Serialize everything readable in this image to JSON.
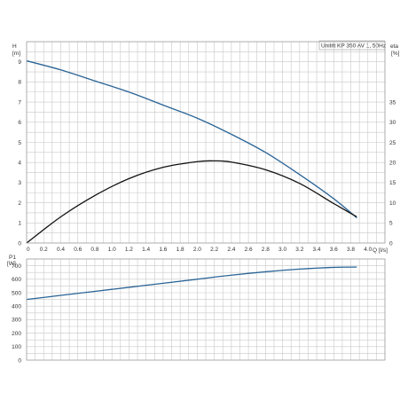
{
  "colors": {
    "head_curve": "#2a6496",
    "eta_curve": "#111111",
    "power_curve": "#2a6496",
    "grid": "#c8c8c8",
    "frame": "#9a9a9a",
    "text": "#333333"
  },
  "chart_data": [
    {
      "type": "line",
      "title": "Unilift KP 350 AV 1, 50Hz",
      "xlabel": "Q [l/s]",
      "ylabel": "H\n[m]",
      "ylabel_right": "eta\n[%]",
      "xlim": [
        0,
        4.2
      ],
      "ylim": [
        0,
        10
      ],
      "ylim_right": [
        0,
        50
      ],
      "x_ticks": [
        "0",
        "0.2",
        "0.4",
        "0.6",
        "0.8",
        "1.0",
        "1.2",
        "1.4",
        "1.6",
        "1.8",
        "2.0",
        "2.2",
        "2.4",
        "2.6",
        "2.8",
        "3.0",
        "3.2",
        "3.4",
        "3.6",
        "3.8",
        "4.0"
      ],
      "y_ticks": [
        "0",
        "1",
        "2",
        "3",
        "4",
        "5",
        "6",
        "7",
        "8",
        "9"
      ],
      "y_ticks_right": [
        "0",
        "5",
        "10",
        "15",
        "20",
        "25",
        "30",
        "35"
      ],
      "grid": true,
      "series": [
        {
          "axis": "left",
          "x": [
            0,
            0.4,
            0.8,
            1.2,
            1.6,
            2.0,
            2.4,
            2.8,
            3.2,
            3.6,
            3.87
          ],
          "values": [
            9.05,
            8.6,
            8.05,
            7.5,
            6.85,
            6.2,
            5.4,
            4.5,
            3.4,
            2.2,
            1.25
          ]
        },
        {
          "axis": "right",
          "x": [
            0,
            0.4,
            0.8,
            1.2,
            1.6,
            2.0,
            2.2,
            2.4,
            2.8,
            3.2,
            3.6,
            3.87
          ],
          "values": [
            0,
            6.5,
            11.8,
            16.0,
            18.8,
            20.2,
            20.4,
            20.1,
            18.2,
            14.8,
            9.8,
            6.5
          ]
        }
      ]
    },
    {
      "type": "line",
      "ylabel": "P1\n[W]",
      "xlim": [
        0,
        4.2
      ],
      "ylim": [
        0,
        750
      ],
      "y_ticks": [
        "0",
        "100",
        "200",
        "300",
        "400",
        "500",
        "600",
        "700"
      ],
      "grid": true,
      "series": [
        {
          "x": [
            0,
            0.4,
            0.8,
            1.2,
            1.6,
            2.0,
            2.4,
            2.8,
            3.2,
            3.6,
            3.87
          ],
          "values": [
            450,
            480,
            510,
            540,
            570,
            600,
            630,
            655,
            675,
            688,
            690
          ]
        }
      ]
    }
  ]
}
